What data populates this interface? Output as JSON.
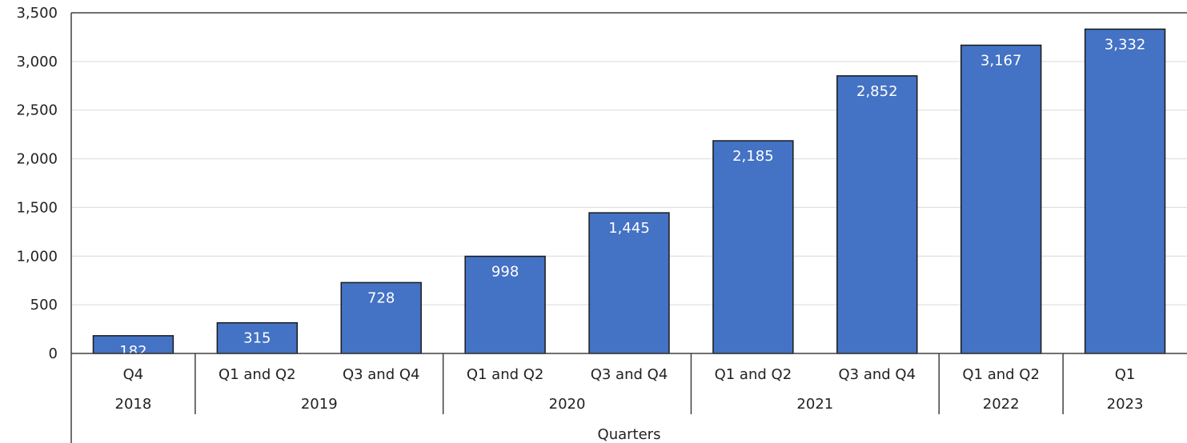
{
  "chart_data": {
    "type": "bar",
    "title": "",
    "xlabel": "Quarters",
    "ylabel": "",
    "ylim": [
      0,
      3500
    ],
    "yticks": [
      0,
      500,
      1000,
      1500,
      2000,
      2500,
      3000,
      3500
    ],
    "ytick_labels": [
      "0",
      "500",
      "1,000",
      "1,500",
      "2,000",
      "2,500",
      "3,000",
      "3,500"
    ],
    "grid": true,
    "legend": "none",
    "bar_color": "#4472C4",
    "categories": [
      "Q4",
      "Q1 and Q2",
      "Q3 and Q4",
      "Q1 and Q2",
      "Q3 and Q4",
      "Q1 and Q2",
      "Q3 and Q4",
      "Q1 and Q2",
      "Q1"
    ],
    "values": [
      182,
      315,
      728,
      998,
      1445,
      2185,
      2852,
      3167,
      3332
    ],
    "value_labels": [
      "182",
      "315",
      "728",
      "998",
      "1,445",
      "2,185",
      "2,852",
      "3,167",
      "3,332"
    ],
    "groups": [
      {
        "label": "2018",
        "count": 1
      },
      {
        "label": "2019",
        "count": 2
      },
      {
        "label": "2020",
        "count": 2
      },
      {
        "label": "2021",
        "count": 2
      },
      {
        "label": "2022",
        "count": 1
      },
      {
        "label": "2023",
        "count": 1
      }
    ]
  }
}
